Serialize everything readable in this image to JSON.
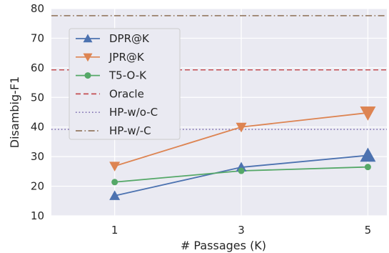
{
  "chart_data": {
    "type": "line",
    "xlabel": "# Passages (K)",
    "ylabel": "Disambig-F1",
    "x": [
      1,
      3,
      5
    ],
    "xticks": [
      "1",
      "3",
      "5"
    ],
    "ylim": [
      10,
      80
    ],
    "yticks": [
      "10",
      "20",
      "30",
      "40",
      "50",
      "60",
      "70",
      "80"
    ],
    "grid": true,
    "legend_position": "top-left",
    "series": [
      {
        "name": "DPR@K",
        "values": [
          16.8,
          26.4,
          30.4
        ],
        "color": "#4c72b0",
        "marker": "triangle-up",
        "style": "solid"
      },
      {
        "name": "JPR@K",
        "values": [
          26.8,
          40.0,
          44.8
        ],
        "color": "#dd8452",
        "marker": "triangle-down",
        "style": "solid"
      },
      {
        "name": "T5-O-K",
        "values": [
          21.4,
          25.2,
          26.5
        ],
        "color": "#55a868",
        "marker": "circle",
        "style": "solid"
      },
      {
        "name": "Oracle",
        "values": [
          59.3,
          59.3,
          59.3
        ],
        "color": "#c44e52",
        "marker": "none",
        "style": "dashed"
      },
      {
        "name": "HP-w/o-C",
        "values": [
          39.2,
          39.2,
          39.2
        ],
        "color": "#8172b3",
        "marker": "none",
        "style": "dotted"
      },
      {
        "name": "HP-w/-C",
        "values": [
          77.6,
          77.6,
          77.6
        ],
        "color": "#937860",
        "marker": "none",
        "style": "dashdot"
      }
    ]
  }
}
